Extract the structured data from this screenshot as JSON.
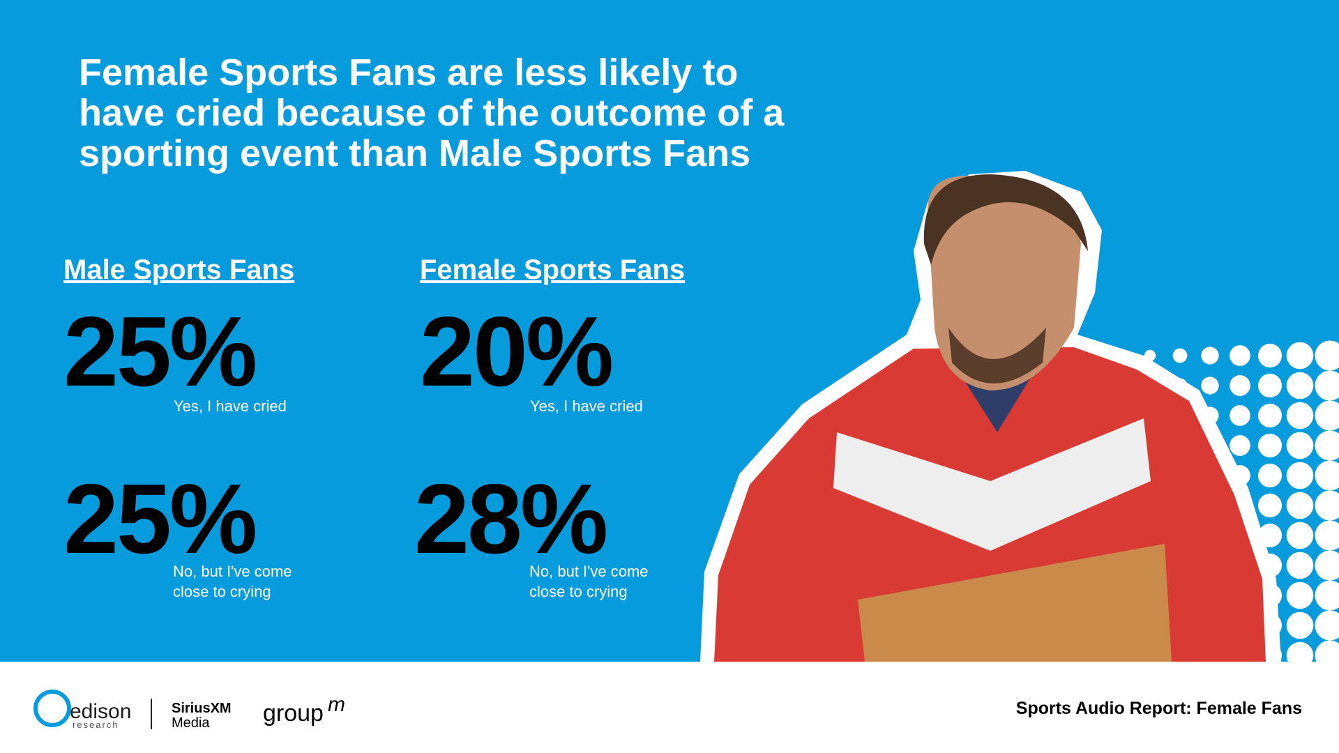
{
  "title": [
    "Female Sports Fans are less likely to",
    "have cried because of the outcome of a",
    "sporting event than Male Sports Fans"
  ],
  "columns": [
    {
      "heading": "Male Sports Fans",
      "stats": [
        {
          "value": "25%",
          "label": [
            "Yes, I have cried"
          ]
        },
        {
          "value": "25%",
          "label": [
            "No, but I've come",
            "close to crying"
          ]
        }
      ]
    },
    {
      "heading": "Female Sports Fans",
      "stats": [
        {
          "value": "20%",
          "label": [
            "Yes, I have cried"
          ]
        },
        {
          "value": "28%",
          "label": [
            "No, but I've come",
            "close to crying"
          ]
        }
      ]
    }
  ],
  "footer": {
    "logos": {
      "edison": "edison",
      "research": "research",
      "siriusxm": "SiriusXM",
      "media": "Media",
      "group": "group",
      "m": "m"
    },
    "report": "Sports Audio Report: Female Fans"
  }
}
